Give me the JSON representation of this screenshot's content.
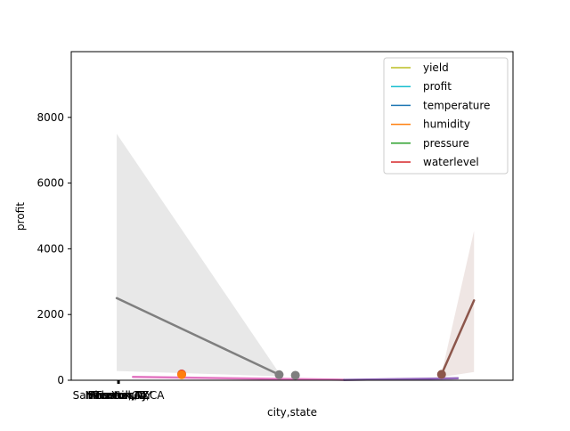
{
  "chart_data": {
    "type": "line",
    "xlabel": "city,state",
    "ylabel": "profit",
    "ylim": [
      0,
      10000
    ],
    "yticks": [
      0,
      2000,
      4000,
      6000,
      8000
    ],
    "ytick_labels": [
      "0",
      "2000",
      "4000",
      "6000",
      "8000"
    ],
    "xtick_labels": [
      "San Francisco,CA",
      "Newark,NJ",
      "Atlanta,GA",
      "Phoenix,AZ",
      "Trenton,NJ",
      "Houston,TX",
      "New York,NY"
    ],
    "legend_position": "top-right",
    "legend": [
      {
        "name": "yield",
        "color": "#bcbd22"
      },
      {
        "name": "profit",
        "color": "#17becf"
      },
      {
        "name": "temperature",
        "color": "#1f77b4"
      },
      {
        "name": "humidity",
        "color": "#ff7f0e"
      },
      {
        "name": "pressure",
        "color": "#2ca02c"
      },
      {
        "name": "waterlevel",
        "color": "#d62728"
      }
    ],
    "band_color": "#e8e8e8",
    "band_color_brown": "#efe6e4",
    "series": [
      {
        "color": "#7f7f7f",
        "x": [
          0,
          0.5
        ],
        "y": [
          2500,
          170
        ],
        "band_upper": [
          7500,
          220
        ],
        "band_lower": [
          280,
          120
        ]
      },
      {
        "color": "#8c564b",
        "x": [
          1,
          1.1
        ],
        "y": [
          180,
          2430
        ],
        "band_upper": [
          200,
          4550
        ],
        "band_lower": [
          100,
          250
        ]
      },
      {
        "color": "#e377c2",
        "x": [
          0.05,
          0.7
        ],
        "y": [
          100,
          15
        ]
      },
      {
        "color": "#9467bd",
        "x": [
          0.7,
          1.05
        ],
        "y": [
          10,
          60
        ]
      }
    ],
    "points": [
      {
        "x": 0.2,
        "y": 190,
        "color": "#d62728"
      },
      {
        "x": 0.2,
        "y": 170,
        "color": "#ff7f0e"
      },
      {
        "x": 0.5,
        "y": 170,
        "color": "#7f7f7f"
      },
      {
        "x": 0.55,
        "y": 150,
        "color": "#7f7f7f"
      },
      {
        "x": 1.0,
        "y": 180,
        "color": "#8c564b"
      }
    ]
  }
}
